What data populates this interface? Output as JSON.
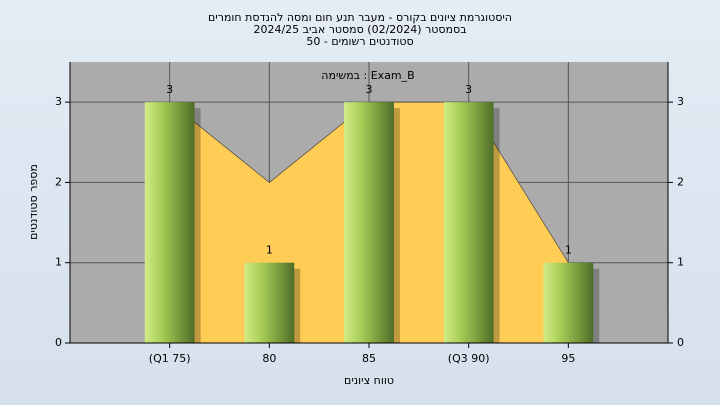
{
  "chart_data": {
    "type": "bar",
    "title": [
      "היסטוגרמת ציונים בקורס - מעבר תנע חום ומסה להנדסת חומרים",
      "בסמסטר  (02/2024)  סמסטר אביב 2024/25",
      "סטודנטים רשומים - 50"
    ],
    "annotation": "במשימה : Exam_B",
    "x_label": "טווח ציונים",
    "y_label": "מספר סטודנטים",
    "categories": [
      "(Q1 75)",
      "80",
      "85",
      "(Q3 90)",
      "95"
    ],
    "series": [
      {
        "name": "area",
        "type": "area",
        "color": "#ffcc55",
        "values": [
          3,
          2,
          3,
          3,
          1
        ]
      },
      {
        "name": "bars",
        "type": "bar",
        "color": "#8fb83e",
        "values": [
          3,
          1,
          3,
          3,
          1
        ]
      }
    ],
    "ylim": [
      0,
      3.5
    ],
    "yticks": [
      0,
      1,
      2,
      3
    ],
    "grid": true
  }
}
